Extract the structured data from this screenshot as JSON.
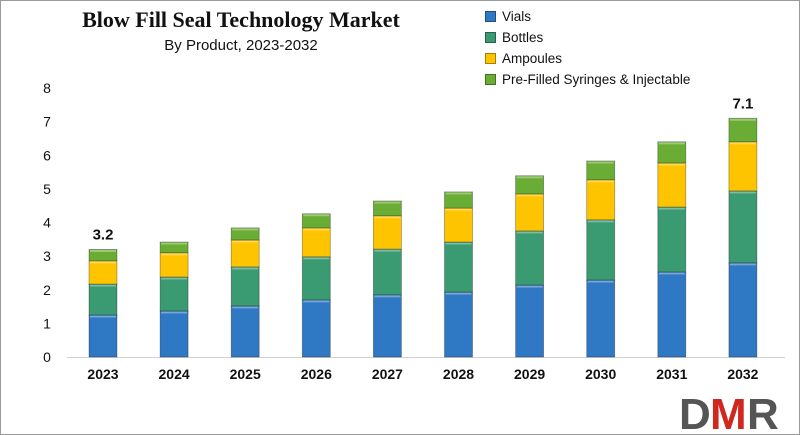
{
  "chart_data": {
    "type": "bar",
    "stacked": true,
    "title": "Blow Fill Seal Technology Market",
    "subtitle": "By Product, 2023-2032",
    "xlabel": "",
    "ylabel": "",
    "ylim": [
      0,
      8
    ],
    "yticks": [
      "0",
      "1",
      "2",
      "3",
      "4",
      "5",
      "6",
      "7",
      "8"
    ],
    "grid": false,
    "legend_position": "top-right",
    "categories": [
      "2023",
      "2024",
      "2025",
      "2026",
      "2027",
      "2028",
      "2029",
      "2030",
      "2031",
      "2032"
    ],
    "series": [
      {
        "name": "Vials",
        "color": "#2f78c4",
        "values": [
          1.25,
          1.37,
          1.52,
          1.7,
          1.85,
          1.93,
          2.14,
          2.29,
          2.53,
          2.8
        ]
      },
      {
        "name": "Bottles",
        "color": "#3a9a72",
        "values": [
          0.92,
          1.01,
          1.16,
          1.28,
          1.36,
          1.49,
          1.61,
          1.79,
          1.93,
          2.14
        ]
      },
      {
        "name": "Ampoules",
        "color": "#ffc400",
        "values": [
          0.69,
          0.72,
          0.8,
          0.86,
          0.99,
          1.01,
          1.1,
          1.19,
          1.31,
          1.46
        ]
      },
      {
        "name": "Pre-Filled Syringes & Injectable",
        "color": "#6aad35",
        "values": [
          0.34,
          0.32,
          0.36,
          0.42,
          0.44,
          0.48,
          0.54,
          0.56,
          0.63,
          0.7
        ]
      }
    ],
    "data_labels": [
      {
        "category": "2023",
        "text": "3.2"
      },
      {
        "category": "2032",
        "text": "7.1"
      }
    ]
  },
  "logo": {
    "text": "DMR"
  }
}
